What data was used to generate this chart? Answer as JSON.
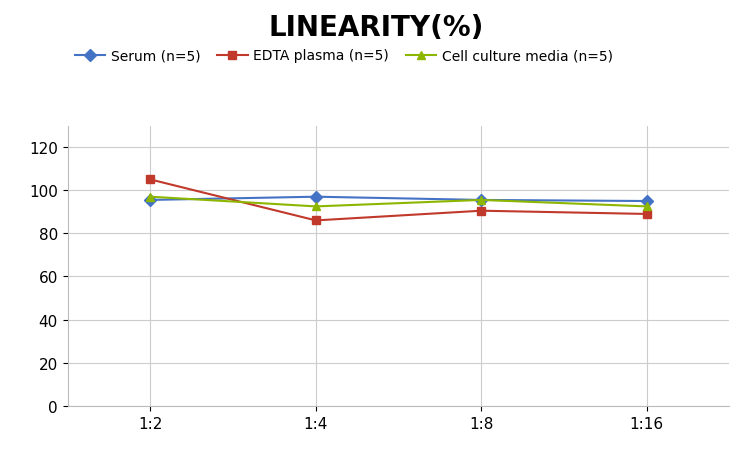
{
  "title": "LINEARITY(%)",
  "x_labels": [
    "1:2",
    "1:4",
    "1:8",
    "1:16"
  ],
  "x_positions": [
    0,
    1,
    2,
    3
  ],
  "series": [
    {
      "label": "Serum (n=5)",
      "values": [
        95.5,
        97.0,
        95.5,
        95.0
      ],
      "color": "#4472C4",
      "marker": "D",
      "markersize": 6,
      "linewidth": 1.5
    },
    {
      "label": "EDTA plasma (n=5)",
      "values": [
        105.0,
        86.0,
        90.5,
        89.0
      ],
      "color": "#C0392B",
      "marker": "s",
      "markersize": 6,
      "linewidth": 1.5
    },
    {
      "label": "Cell culture media (n=5)",
      "values": [
        97.0,
        92.5,
        95.5,
        92.5
      ],
      "color": "#8DB600",
      "marker": "^",
      "markersize": 6,
      "linewidth": 1.5
    }
  ],
  "ylim": [
    0,
    130
  ],
  "yticks": [
    0,
    20,
    40,
    60,
    80,
    100,
    120
  ],
  "grid_color": "#CCCCCC",
  "background_color": "#FFFFFF",
  "title_fontsize": 20,
  "legend_fontsize": 10,
  "tick_fontsize": 11
}
